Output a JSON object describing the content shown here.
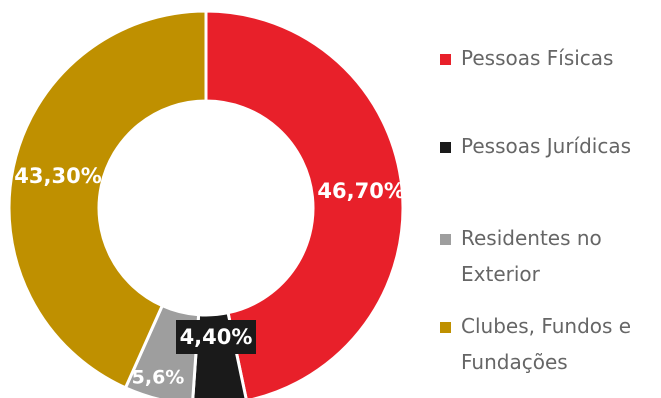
{
  "chart_data": {
    "type": "pie",
    "categories": [
      "Pessoas Físicas",
      "Pessoas Jurídicas",
      "Residentes no Exterior",
      "Clubes, Fundos e Fundações"
    ],
    "values": [
      46.7,
      4.4,
      5.6,
      43.3
    ],
    "data_labels": [
      "46,70%",
      "4,40%",
      "5,6%",
      "43,30%"
    ],
    "colors": [
      "#e8202a",
      "#1a1a1a",
      "#9e9e9e",
      "#bf9000"
    ],
    "legend_position": "right"
  }
}
